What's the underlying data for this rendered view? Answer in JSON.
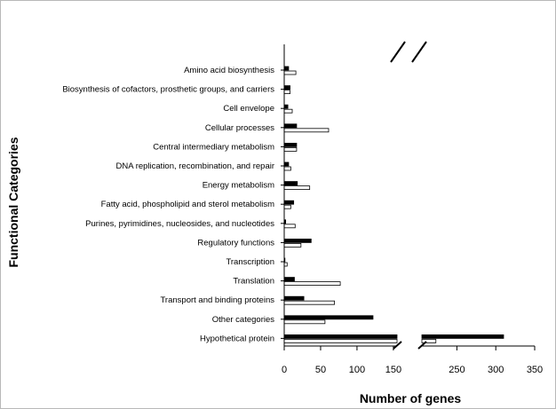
{
  "chart_data": {
    "type": "bar",
    "orientation": "horizontal",
    "xlabel": "Number of genes",
    "ylabel": "Functional Categories",
    "categories": [
      "Amino acid biosynthesis",
      "Biosynthesis of cofactors, prosthetic groups, and carriers",
      "Cell envelope",
      "Cellular processes",
      "Central intermediary metabolism",
      "DNA replication, recombination, and repair",
      "Energy metabolism",
      "Fatty acid, phospholipid and sterol metabolism",
      "Purines, pyrimidines, nucleosides, and nucleotides",
      "Regulatory functions",
      "Transcription",
      "Translation",
      "Transport and binding proteins",
      "Other categories",
      "Hypothetical protein"
    ],
    "series": [
      {
        "color": "#000000",
        "values": [
          6,
          8,
          5,
          17,
          17,
          6,
          18,
          13,
          2,
          37,
          1,
          14,
          27,
          122,
          310
        ]
      },
      {
        "color": "#ffffff",
        "values": [
          16,
          8,
          11,
          61,
          17,
          9,
          35,
          9,
          15,
          23,
          4,
          77,
          69,
          56,
          223
        ]
      }
    ],
    "axis_break": {
      "from": 155,
      "to": 205
    },
    "x_ticks": [
      {
        "value": 0,
        "label": "0"
      },
      {
        "value": 50,
        "label": "50"
      },
      {
        "value": 100,
        "label": "100"
      },
      {
        "value": 150,
        "label": "150"
      },
      {
        "value": 250,
        "label": "250"
      },
      {
        "value": 300,
        "label": "300"
      },
      {
        "value": 350,
        "label": "350"
      }
    ],
    "xlim": [
      0,
      350
    ],
    "grid": false,
    "legend": "none"
  }
}
